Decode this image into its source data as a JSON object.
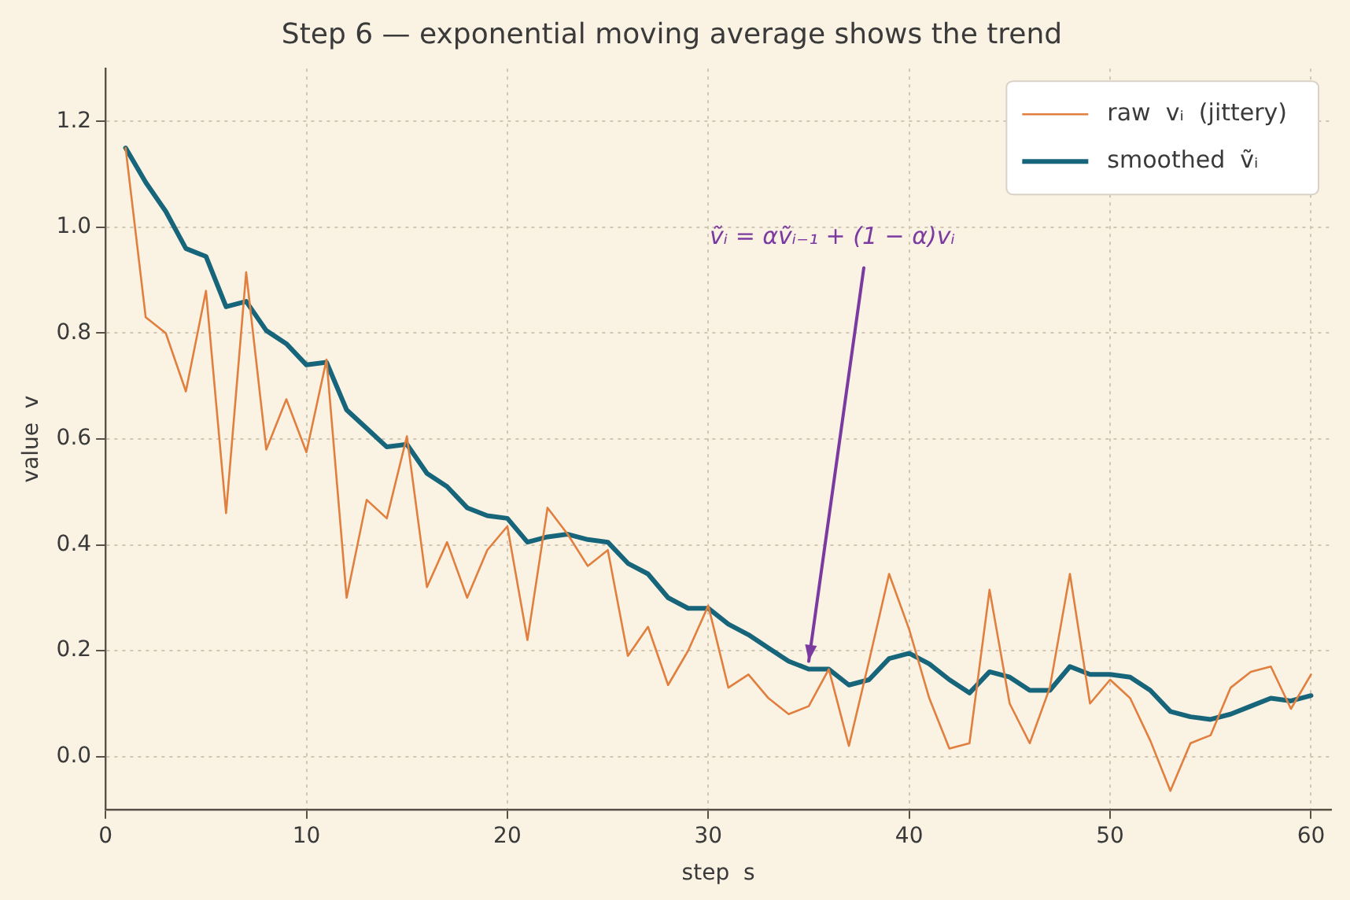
{
  "chart_data": {
    "type": "line",
    "title": "Step 6 — exponential moving average shows the trend",
    "xlabel": "step  s",
    "ylabel": "value  v",
    "x": [
      1,
      2,
      3,
      4,
      5,
      6,
      7,
      8,
      9,
      10,
      11,
      12,
      13,
      14,
      15,
      16,
      17,
      18,
      19,
      20,
      21,
      22,
      23,
      24,
      25,
      26,
      27,
      28,
      29,
      30,
      31,
      32,
      33,
      34,
      35,
      36,
      37,
      38,
      39,
      40,
      41,
      42,
      43,
      44,
      45,
      46,
      47,
      48,
      49,
      50,
      51,
      52,
      53,
      54,
      55,
      56,
      57,
      58,
      59,
      60
    ],
    "series": [
      {
        "name": "raw  vᵢ  (jittery)",
        "color": "#e07f3e",
        "values": [
          1.15,
          0.83,
          0.8,
          0.69,
          0.88,
          0.46,
          0.915,
          0.58,
          0.675,
          0.575,
          0.75,
          0.3,
          0.485,
          0.45,
          0.605,
          0.32,
          0.405,
          0.3,
          0.39,
          0.435,
          0.22,
          0.47,
          0.42,
          0.36,
          0.39,
          0.19,
          0.245,
          0.135,
          0.2,
          0.285,
          0.13,
          0.155,
          0.11,
          0.08,
          0.095,
          0.165,
          0.02,
          0.18,
          0.345,
          0.24,
          0.11,
          0.015,
          0.025,
          0.315,
          0.1,
          0.025,
          0.13,
          0.345,
          0.1,
          0.145,
          0.11,
          0.03,
          -0.065,
          0.025,
          0.04,
          0.13,
          0.16,
          0.17,
          0.09,
          0.155
        ]
      },
      {
        "name": "smoothed  ṽᵢ",
        "color": "#17657a",
        "values": [
          1.15,
          1.085,
          1.03,
          0.96,
          0.945,
          0.85,
          0.86,
          0.805,
          0.78,
          0.74,
          0.745,
          0.655,
          0.62,
          0.585,
          0.59,
          0.535,
          0.51,
          0.47,
          0.455,
          0.45,
          0.405,
          0.415,
          0.42,
          0.41,
          0.405,
          0.365,
          0.345,
          0.3,
          0.28,
          0.28,
          0.25,
          0.23,
          0.205,
          0.18,
          0.165,
          0.165,
          0.135,
          0.145,
          0.185,
          0.195,
          0.175,
          0.145,
          0.12,
          0.16,
          0.15,
          0.125,
          0.125,
          0.17,
          0.155,
          0.155,
          0.15,
          0.125,
          0.085,
          0.075,
          0.07,
          0.08,
          0.095,
          0.11,
          0.105,
          0.115
        ]
      }
    ],
    "xlim": [
      0,
      61
    ],
    "xticks": [
      0,
      10,
      20,
      30,
      40,
      50,
      60
    ],
    "ylim": [
      -0.1,
      1.3
    ],
    "yticks": [
      {
        "value": 0,
        "label": "0.0"
      },
      {
        "value": 0.2,
        "label": "0.2"
      },
      {
        "value": 0.4,
        "label": "0.4"
      },
      {
        "value": 0.6,
        "label": "0.6"
      },
      {
        "value": 0.8,
        "label": "0.8"
      },
      {
        "value": 1,
        "label": "1.0"
      },
      {
        "value": 1.2,
        "label": "1.2"
      }
    ],
    "annotations": [
      {
        "text": "ṽᵢ = αṽᵢ₋₁ + (1 − α)vᵢ",
        "x": 35,
        "y": 0.18
      }
    ],
    "grid": true,
    "legend": "top right",
    "marker": "none",
    "line_style": "solid"
  }
}
